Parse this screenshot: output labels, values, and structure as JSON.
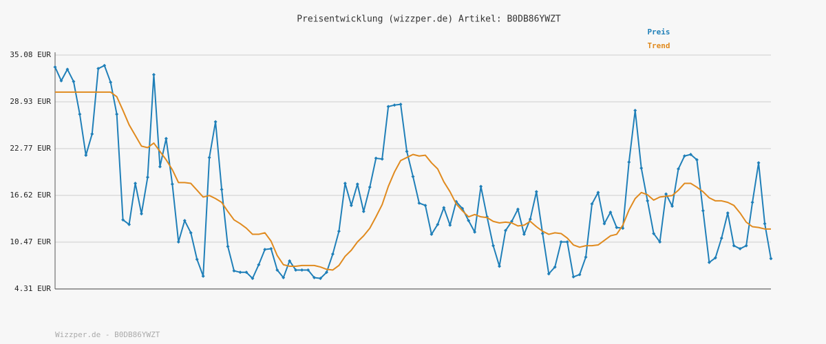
{
  "chart_data": {
    "type": "line",
    "title": "Preisentwicklung (wizzper.de) Artikel: B0DB86YWZT",
    "footer": "Wizzper.de - B0DB86YWZT",
    "ylim": [
      4.31,
      35.08
    ],
    "yticks": [
      {
        "value": 4.31,
        "label": "4.31 EUR"
      },
      {
        "value": 10.47,
        "label": "10.47 EUR"
      },
      {
        "value": 16.62,
        "label": "16.62 EUR"
      },
      {
        "value": 22.77,
        "label": "22.77 EUR"
      },
      {
        "value": 28.93,
        "label": "28.93 EUR"
      },
      {
        "value": 35.08,
        "label": "35.08 EUR"
      }
    ],
    "grid": true,
    "legend": "top-right",
    "series": [
      {
        "name": "Preis",
        "color": "#1f7fb8",
        "markers": true,
        "values": [
          33.5,
          31.7,
          33.2,
          31.6,
          27.3,
          21.9,
          24.7,
          33.3,
          33.7,
          31.5,
          27.3,
          13.4,
          12.8,
          18.2,
          14.2,
          19.0,
          32.5,
          20.4,
          24.1,
          18.1,
          10.5,
          13.3,
          11.7,
          8.2,
          6.0,
          21.6,
          26.3,
          17.4,
          9.9,
          6.7,
          6.5,
          6.5,
          5.7,
          7.5,
          9.5,
          9.6,
          6.8,
          5.8,
          8.0,
          6.8,
          6.8,
          6.8,
          5.8,
          5.7,
          6.5,
          8.9,
          11.9,
          18.2,
          15.3,
          18.1,
          14.5,
          17.7,
          21.5,
          21.4,
          28.3,
          28.5,
          28.6,
          22.4,
          19.1,
          15.6,
          15.3,
          11.5,
          12.8,
          15.0,
          12.7,
          15.8,
          14.9,
          13.3,
          11.8,
          17.8,
          13.8,
          10.0,
          7.3,
          12.0,
          13.2,
          14.8,
          11.5,
          13.5,
          17.1,
          11.6,
          6.3,
          7.2,
          10.5,
          10.5,
          5.9,
          6.2,
          8.5,
          15.5,
          17.0,
          12.9,
          14.4,
          12.4,
          12.3,
          21.0,
          27.8,
          20.2,
          15.9,
          11.6,
          10.5,
          16.8,
          15.2,
          20.1,
          21.8,
          22.0,
          21.3,
          14.6,
          7.8,
          8.4,
          11.0,
          14.3,
          10.0,
          9.6,
          10.0,
          15.7,
          20.9,
          12.9,
          8.3
        ]
      },
      {
        "name": "Trend",
        "color": "#e08a1e",
        "markers": false,
        "values": [
          30.2,
          30.2,
          30.2,
          30.2,
          30.2,
          30.2,
          30.2,
          30.2,
          30.2,
          30.2,
          29.6,
          27.8,
          25.9,
          24.5,
          23.1,
          22.9,
          23.5,
          22.4,
          21.3,
          20.0,
          18.3,
          18.3,
          18.2,
          17.3,
          16.4,
          16.6,
          16.2,
          15.7,
          14.5,
          13.4,
          12.9,
          12.3,
          11.5,
          11.5,
          11.7,
          10.6,
          8.7,
          7.5,
          7.3,
          7.3,
          7.4,
          7.4,
          7.4,
          7.2,
          6.9,
          6.8,
          7.4,
          8.6,
          9.4,
          10.5,
          11.3,
          12.3,
          13.8,
          15.4,
          17.8,
          19.7,
          21.2,
          21.6,
          22.0,
          21.8,
          21.9,
          20.9,
          20.1,
          18.4,
          17.1,
          15.5,
          14.6,
          13.8,
          14.1,
          13.8,
          13.7,
          13.2,
          13.0,
          13.1,
          13.0,
          12.6,
          12.7,
          13.2,
          12.5,
          11.9,
          11.5,
          11.7,
          11.6,
          11.0,
          10.1,
          9.8,
          10.0,
          10.0,
          10.1,
          10.7,
          11.3,
          11.5,
          12.7,
          14.7,
          16.2,
          17.0,
          16.7,
          16.0,
          16.4,
          16.5,
          16.6,
          17.3,
          18.2,
          18.2,
          17.7,
          17.1,
          16.3,
          15.9,
          15.9,
          15.7,
          15.3,
          14.3,
          13.1,
          12.5,
          12.4,
          12.2,
          12.2
        ]
      }
    ]
  }
}
